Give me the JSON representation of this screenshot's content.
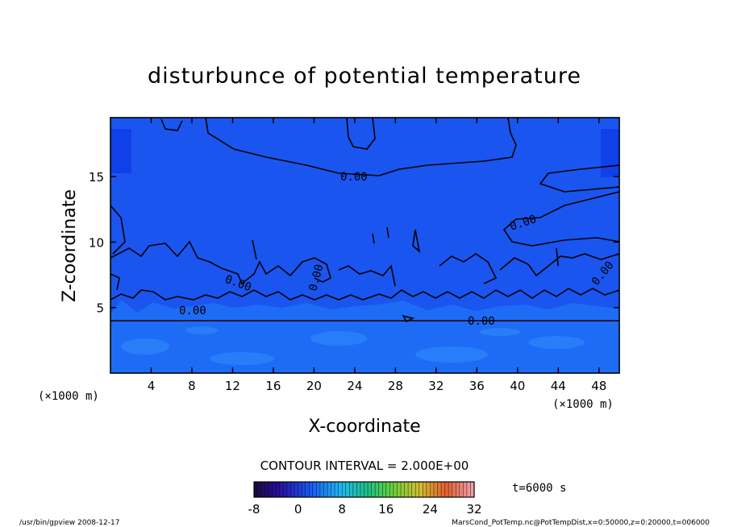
{
  "chart_data": {
    "type": "contour",
    "title": "disturbunce of potential temperature",
    "xlabel": "X-coordinate",
    "ylabel": "Z-coordinate",
    "x_unit": "(×1000 m)",
    "y_unit": "(×1000 m)",
    "xlim": [
      0,
      50
    ],
    "ylim": [
      0,
      19.5
    ],
    "x_ticks": [
      4,
      8,
      12,
      16,
      20,
      24,
      28,
      32,
      36,
      40,
      44,
      48
    ],
    "y_ticks": [
      5,
      10,
      15
    ],
    "contour_interval_text": "CONTOUR INTERVAL = 2.000E+00",
    "contour_label": "0.00",
    "time_text": "t=6000 s",
    "colorbar": {
      "min": -8,
      "max": 32,
      "ticks": [
        -8,
        0,
        8,
        16,
        24,
        32
      ]
    },
    "fill_colors": {
      "upper": "#1a55f0",
      "upper_edge": "#1040e8",
      "lower": "#1e6cf5",
      "lower_light": "#2c86fa"
    }
  },
  "footer": {
    "left": "/usr/bin/gpview   2008-12-17",
    "right": "MarsCond_PotTemp.nc@PotTempDist,x=0:50000,z=0:20000,t=006000"
  }
}
